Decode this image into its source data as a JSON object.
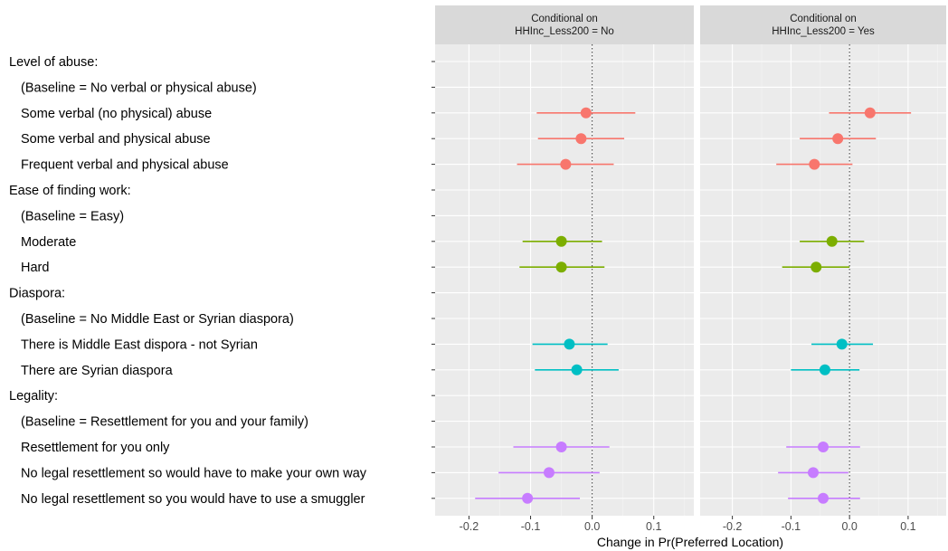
{
  "chart_data": {
    "type": "scatter",
    "subtype": "dot-and-whisker (faceted)",
    "xlabel": "Change in Pr(Preferred Location)",
    "xlim": [
      -0.255,
      0.165
    ],
    "xticks": [
      -0.2,
      -0.1,
      0.0,
      0.1
    ],
    "xtick_labels": [
      "-0.2",
      "-0.1",
      "0.0",
      "0.1"
    ],
    "reference_line_x": 0,
    "grid": true,
    "facets": [
      {
        "title_line1": "Conditional on",
        "title_line2": "HHInc_Less200 = No"
      },
      {
        "title_line1": "Conditional on",
        "title_line2": "HHInc_Less200 = Yes"
      }
    ],
    "rows": [
      "Level of abuse:",
      "(Baseline = No verbal or physical abuse)",
      "Some verbal (no physical) abuse",
      "Some verbal and physical abuse",
      "Frequent verbal and physical abuse",
      "Ease of finding work:",
      "(Baseline = Easy)",
      "Moderate",
      "Hard",
      "Diaspora:",
      "(Baseline = No Middle East or Syrian diaspora)",
      "There is Middle East dispora - not Syrian",
      "There are Syrian diaspora",
      "Legality:",
      "(Baseline = Resettlement for you and your family)",
      "Resettlement for you only",
      "No legal resettlement so would have to make your own way",
      "No legal resettlement so you would have to use a smuggler"
    ],
    "groups": [
      {
        "name": "Level of abuse",
        "color": "#F8766D"
      },
      {
        "name": "Ease of finding work",
        "color": "#7CAE00"
      },
      {
        "name": "Diaspora",
        "color": "#00BFC4"
      },
      {
        "name": "Legality",
        "color": "#C77CFF"
      }
    ],
    "series": [
      {
        "facet": 0,
        "points": [
          {
            "row": 2,
            "group": 0,
            "estimate": -0.01,
            "lower": -0.09,
            "upper": 0.07
          },
          {
            "row": 3,
            "group": 0,
            "estimate": -0.018,
            "lower": -0.088,
            "upper": 0.052
          },
          {
            "row": 4,
            "group": 0,
            "estimate": -0.043,
            "lower": -0.122,
            "upper": 0.035
          },
          {
            "row": 7,
            "group": 1,
            "estimate": -0.05,
            "lower": -0.113,
            "upper": 0.016
          },
          {
            "row": 8,
            "group": 1,
            "estimate": -0.05,
            "lower": -0.118,
            "upper": 0.02
          },
          {
            "row": 11,
            "group": 2,
            "estimate": -0.037,
            "lower": -0.097,
            "upper": 0.025
          },
          {
            "row": 12,
            "group": 2,
            "estimate": -0.025,
            "lower": -0.093,
            "upper": 0.043
          },
          {
            "row": 15,
            "group": 3,
            "estimate": -0.05,
            "lower": -0.128,
            "upper": 0.028
          },
          {
            "row": 16,
            "group": 3,
            "estimate": -0.07,
            "lower": -0.152,
            "upper": 0.012
          },
          {
            "row": 17,
            "group": 3,
            "estimate": -0.105,
            "lower": -0.19,
            "upper": -0.02
          }
        ]
      },
      {
        "facet": 1,
        "points": [
          {
            "row": 2,
            "group": 0,
            "estimate": 0.035,
            "lower": -0.035,
            "upper": 0.105
          },
          {
            "row": 3,
            "group": 0,
            "estimate": -0.02,
            "lower": -0.085,
            "upper": 0.045
          },
          {
            "row": 4,
            "group": 0,
            "estimate": -0.06,
            "lower": -0.125,
            "upper": 0.005
          },
          {
            "row": 7,
            "group": 1,
            "estimate": -0.03,
            "lower": -0.085,
            "upper": 0.025
          },
          {
            "row": 8,
            "group": 1,
            "estimate": -0.057,
            "lower": -0.115,
            "upper": 0.0
          },
          {
            "row": 11,
            "group": 2,
            "estimate": -0.013,
            "lower": -0.065,
            "upper": 0.04
          },
          {
            "row": 12,
            "group": 2,
            "estimate": -0.042,
            "lower": -0.1,
            "upper": 0.017
          },
          {
            "row": 15,
            "group": 3,
            "estimate": -0.045,
            "lower": -0.108,
            "upper": 0.018
          },
          {
            "row": 16,
            "group": 3,
            "estimate": -0.062,
            "lower": -0.122,
            "upper": -0.002
          },
          {
            "row": 17,
            "group": 3,
            "estimate": -0.045,
            "lower": -0.105,
            "upper": 0.018
          }
        ]
      }
    ]
  }
}
